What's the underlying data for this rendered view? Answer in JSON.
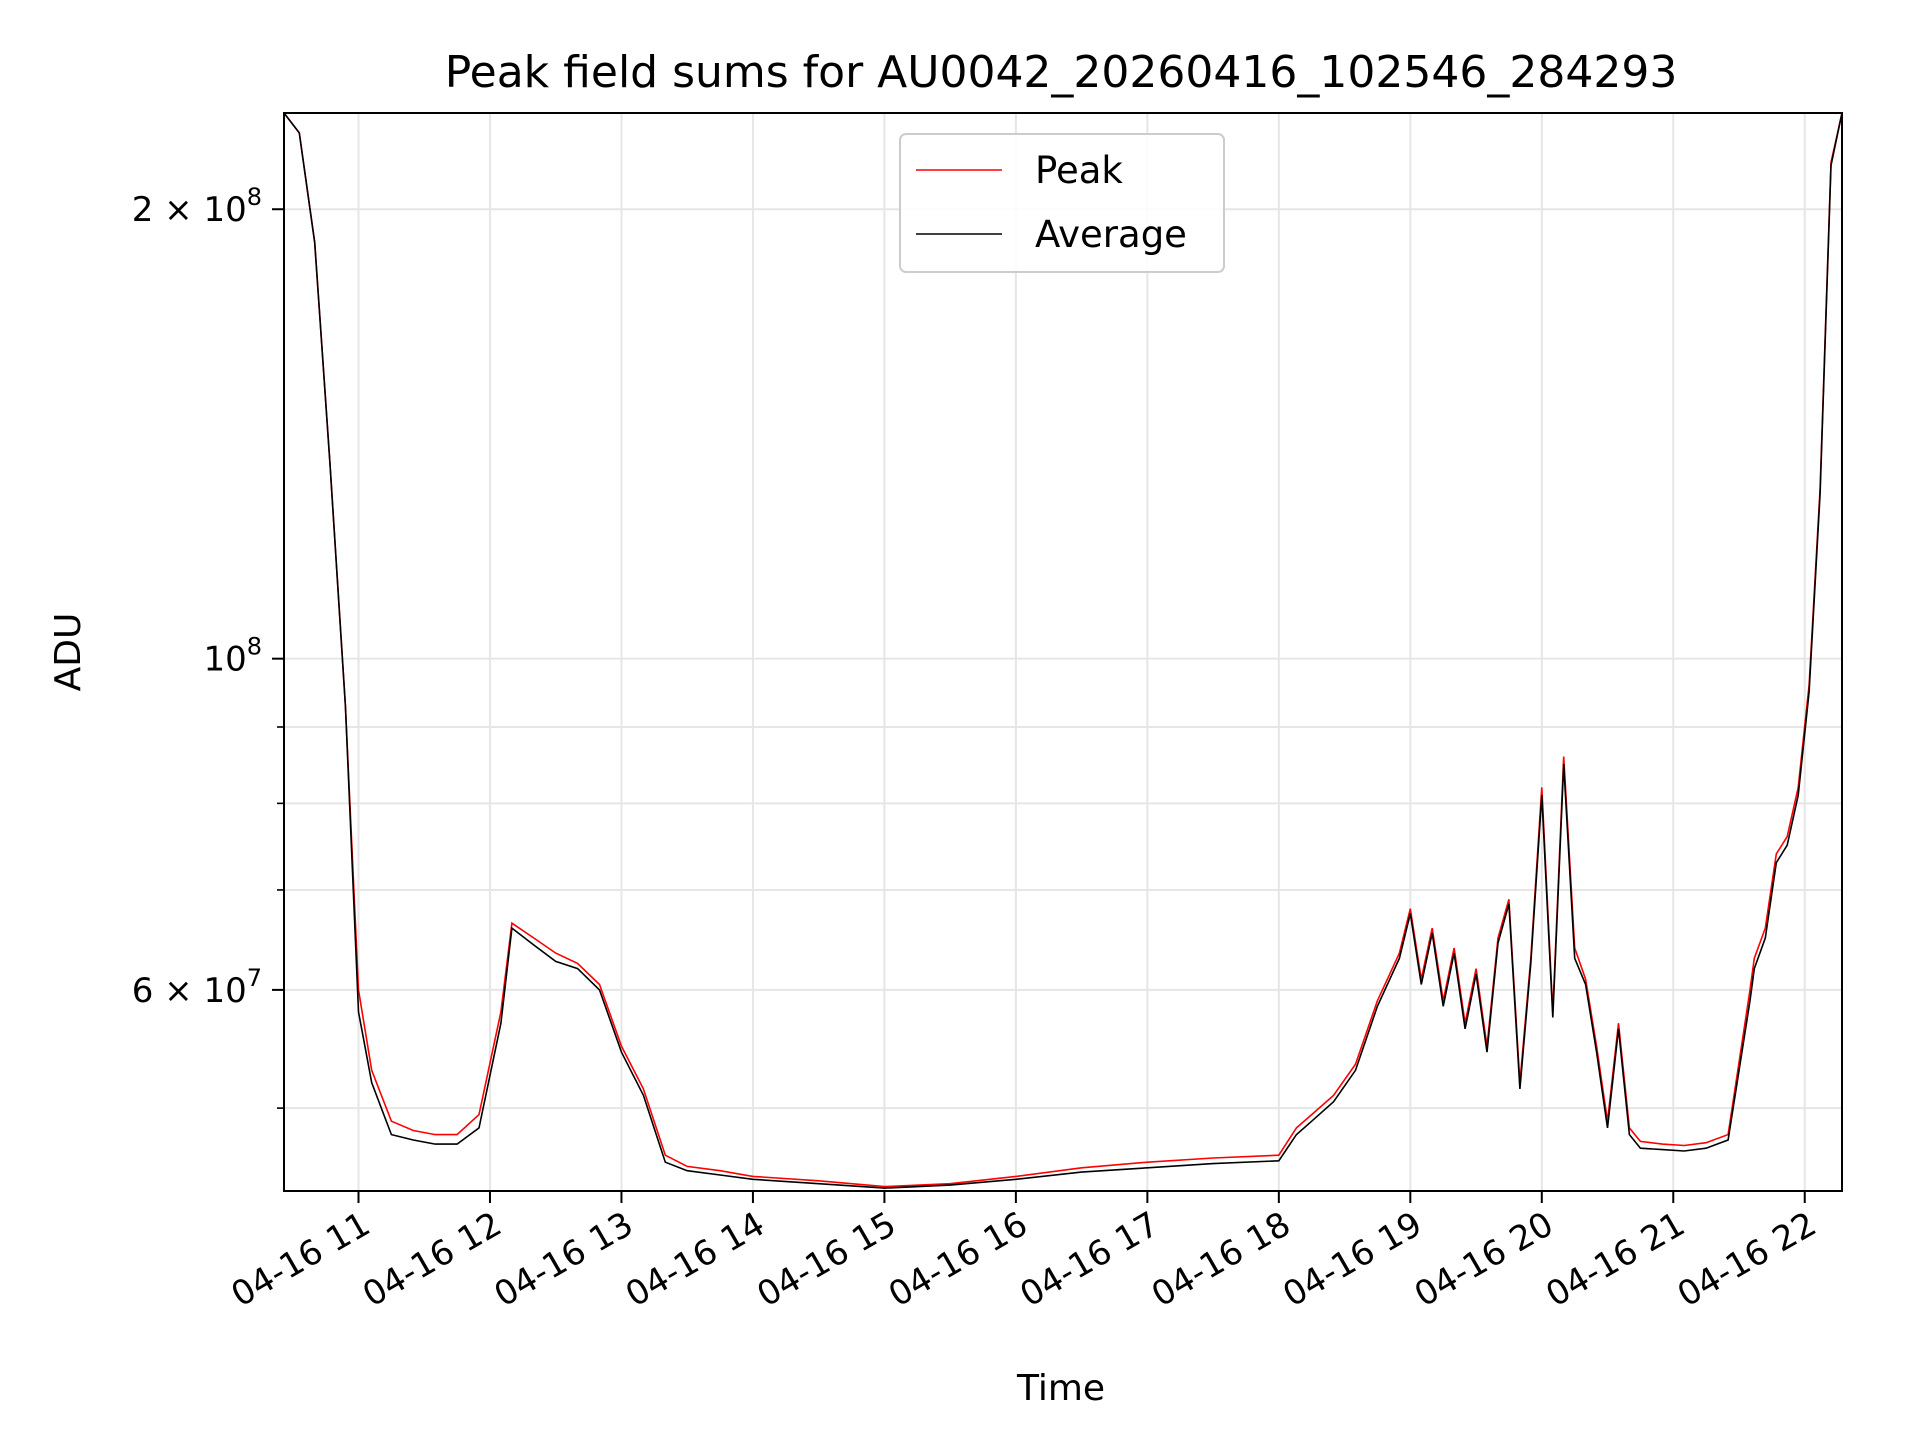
{
  "chart_data": {
    "type": "line",
    "title": "Peak field sums for AU0042_20260416_102546_284293",
    "xlabel": "Time",
    "ylabel": "ADU",
    "yscale": "log",
    "ylim": [
      44000000,
      232000000
    ],
    "xlim": [
      "04-16 10:26",
      "04-16 22:17"
    ],
    "grid": true,
    "legend": "upper center",
    "x_ticks": [
      "04-16 11",
      "04-16 12",
      "04-16 13",
      "04-16 14",
      "04-16 15",
      "04-16 16",
      "04-16 17",
      "04-16 18",
      "04-16 19",
      "04-16 20",
      "04-16 21",
      "04-16 22"
    ],
    "y_ticks": [
      {
        "value": 200000000,
        "mantissa": "2",
        "exponent": "8"
      },
      {
        "value": 100000000,
        "mantissa": "",
        "exponent": "8"
      },
      {
        "value": 60000000,
        "mantissa": "6",
        "exponent": "7"
      }
    ],
    "y_minor_ticks": [
      50000000,
      70000000,
      80000000,
      90000000
    ],
    "x": [
      "10:26",
      "10:33",
      "10:40",
      "10:47",
      "10:54",
      "11:00",
      "11:06",
      "11:15",
      "11:25",
      "11:35",
      "11:45",
      "11:55",
      "12:05",
      "12:10",
      "12:20",
      "12:30",
      "12:40",
      "12:50",
      "13:00",
      "13:10",
      "13:20",
      "13:30",
      "13:45",
      "14:00",
      "14:30",
      "15:00",
      "15:30",
      "16:00",
      "16:30",
      "17:00",
      "17:30",
      "18:00",
      "18:08",
      "18:15",
      "18:25",
      "18:35",
      "18:45",
      "18:55",
      "19:00",
      "19:05",
      "19:10",
      "19:15",
      "19:20",
      "19:25",
      "19:30",
      "19:35",
      "19:40",
      "19:45",
      "19:50",
      "19:55",
      "20:00",
      "20:05",
      "20:10",
      "20:15",
      "20:20",
      "20:25",
      "20:30",
      "20:35",
      "20:40",
      "20:45",
      "20:55",
      "21:05",
      "21:15",
      "21:25",
      "21:35",
      "21:37",
      "21:42",
      "21:47",
      "21:52",
      "21:57",
      "22:02",
      "22:07",
      "22:12",
      "22:17"
    ],
    "series": [
      {
        "name": "Peak",
        "color": "#ff0000",
        "values": [
          232000000,
          225000000,
          190000000,
          135000000,
          93000000,
          60000000,
          53000000,
          49000000,
          48300000,
          48000000,
          48000000,
          49500000,
          58000000,
          66500000,
          65000000,
          63500000,
          62500000,
          60500000,
          55000000,
          51500000,
          46500000,
          45700000,
          45400000,
          45000000,
          44700000,
          44300000,
          44500000,
          45000000,
          45600000,
          46000000,
          46300000,
          46500000,
          48500000,
          49500000,
          51000000,
          53500000,
          59000000,
          63500000,
          68000000,
          61000000,
          66000000,
          59000000,
          64000000,
          57000000,
          62000000,
          55000000,
          65000000,
          69000000,
          52000000,
          63000000,
          82000000,
          58000000,
          86000000,
          64000000,
          61000000,
          55000000,
          49000000,
          57000000,
          48500000,
          47500000,
          47300000,
          47200000,
          47400000,
          48000000,
          60000000,
          63000000,
          66000000,
          74000000,
          76000000,
          82000000,
          96000000,
          130000000,
          215000000,
          232000000
        ]
      },
      {
        "name": "Average",
        "color": "#000000",
        "values": [
          232000000,
          225000000,
          190000000,
          135000000,
          93000000,
          58000000,
          52000000,
          48000000,
          47600000,
          47300000,
          47300000,
          48500000,
          57000000,
          66000000,
          64300000,
          62700000,
          62000000,
          60000000,
          54500000,
          51000000,
          46000000,
          45400000,
          45100000,
          44800000,
          44500000,
          44200000,
          44400000,
          44800000,
          45300000,
          45600000,
          45900000,
          46100000,
          48000000,
          49000000,
          50500000,
          53000000,
          58500000,
          63000000,
          67500000,
          60500000,
          65500000,
          58500000,
          63500000,
          56500000,
          61500000,
          54500000,
          64500000,
          68500000,
          51500000,
          62500000,
          81000000,
          57500000,
          85000000,
          63000000,
          60500000,
          54500000,
          48500000,
          56500000,
          48000000,
          47000000,
          46900000,
          46800000,
          47000000,
          47600000,
          59000000,
          62000000,
          65000000,
          73000000,
          75000000,
          81000000,
          95000000,
          129000000,
          214000000,
          232000000
        ]
      }
    ]
  }
}
